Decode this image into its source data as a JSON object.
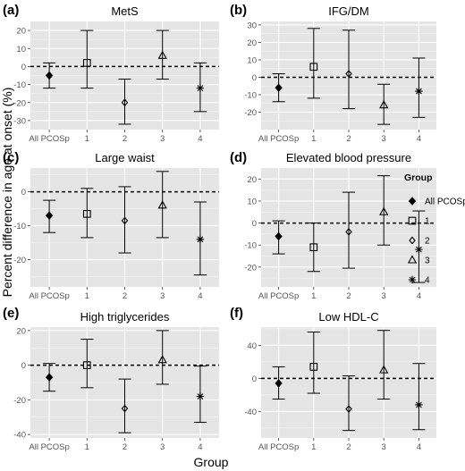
{
  "figure": {
    "ylabel": "Percent difference in age at onset (%)",
    "xlabel": "Group",
    "legend": {
      "title": "Group",
      "placement": "right",
      "entries": [
        {
          "label": "All PCOSp",
          "shape": "filled-diamond"
        },
        {
          "label": "1",
          "shape": "square"
        },
        {
          "label": "2",
          "shape": "diamond"
        },
        {
          "label": "3",
          "shape": "triangle"
        },
        {
          "label": "4",
          "shape": "asterisk"
        }
      ]
    },
    "colors": {
      "panel_bg": "#e5e5e5",
      "grid": "#ffffff",
      "marks": "#000000"
    }
  },
  "chart_data": [
    {
      "type": "scatter",
      "panel": "(a)",
      "title": "MetS",
      "categories": [
        "All PCOSp",
        "1",
        "2",
        "3",
        "4"
      ],
      "ylim": [
        -35,
        25
      ],
      "yticks": [
        -30,
        -20,
        -10,
        0,
        10,
        20
      ],
      "reference_line": 0,
      "grid": true,
      "points": [
        {
          "group": "All PCOSp",
          "estimate": -5,
          "lower": -12,
          "upper": 2
        },
        {
          "group": "1",
          "estimate": 2,
          "lower": -12,
          "upper": 20
        },
        {
          "group": "2",
          "estimate": -20,
          "lower": -32,
          "upper": -7
        },
        {
          "group": "3",
          "estimate": 6,
          "lower": -7,
          "upper": 20
        },
        {
          "group": "4",
          "estimate": -12,
          "lower": -25,
          "upper": 2
        }
      ]
    },
    {
      "type": "scatter",
      "panel": "(b)",
      "title": "IFG/DM",
      "categories": [
        "All PCOSp",
        "1",
        "2",
        "3",
        "4"
      ],
      "ylim": [
        -30,
        32
      ],
      "yticks": [
        -20,
        -10,
        0,
        10,
        20,
        30
      ],
      "reference_line": 0,
      "grid": true,
      "points": [
        {
          "group": "All PCOSp",
          "estimate": -6,
          "lower": -14,
          "upper": 2
        },
        {
          "group": "1",
          "estimate": 6,
          "lower": -12,
          "upper": 28
        },
        {
          "group": "2",
          "estimate": 2,
          "lower": -18,
          "upper": 27
        },
        {
          "group": "3",
          "estimate": -16,
          "lower": -27,
          "upper": -4
        },
        {
          "group": "4",
          "estimate": -8,
          "lower": -23,
          "upper": 11
        }
      ]
    },
    {
      "type": "scatter",
      "panel": "(c)",
      "title": "Large waist",
      "categories": [
        "All PCOSp",
        "1",
        "2",
        "3",
        "4"
      ],
      "ylim": [
        -28,
        7
      ],
      "yticks": [
        -20,
        -10,
        0
      ],
      "reference_line": 0,
      "grid": true,
      "points": [
        {
          "group": "All PCOSp",
          "estimate": -7,
          "lower": -12,
          "upper": -2.5
        },
        {
          "group": "1",
          "estimate": -6.5,
          "lower": -13.5,
          "upper": 1
        },
        {
          "group": "2",
          "estimate": -8.5,
          "lower": -18,
          "upper": 1.5
        },
        {
          "group": "3",
          "estimate": -4,
          "lower": -13.5,
          "upper": 6
        },
        {
          "group": "4",
          "estimate": -14,
          "lower": -24.5,
          "upper": -3
        }
      ]
    },
    {
      "type": "scatter",
      "panel": "(d)",
      "title": "Elevated blood pressure",
      "categories": [
        "All PCOSp",
        "1",
        "2",
        "3",
        "4"
      ],
      "ylim": [
        -29,
        25
      ],
      "yticks": [
        -20,
        -10,
        0,
        10,
        20
      ],
      "reference_line": 0,
      "grid": true,
      "points": [
        {
          "group": "All PCOSp",
          "estimate": -6,
          "lower": -14,
          "upper": 1
        },
        {
          "group": "1",
          "estimate": -11,
          "lower": -22,
          "upper": 0
        },
        {
          "group": "2",
          "estimate": -4,
          "lower": -20.5,
          "upper": 14
        },
        {
          "group": "3",
          "estimate": 5,
          "lower": -10,
          "upper": 21.5
        },
        {
          "group": "4",
          "estimate": -12,
          "lower": -27,
          "upper": 5.5
        }
      ]
    },
    {
      "type": "scatter",
      "panel": "(e)",
      "title": "High triglycerides",
      "categories": [
        "All PCOSp",
        "1",
        "2",
        "3",
        "4"
      ],
      "ylim": [
        -42,
        22
      ],
      "yticks": [
        -40,
        -20,
        0,
        20
      ],
      "reference_line": 0,
      "grid": true,
      "points": [
        {
          "group": "All PCOSp",
          "estimate": -7,
          "lower": -15,
          "upper": 1
        },
        {
          "group": "1",
          "estimate": 0,
          "lower": -13,
          "upper": 15
        },
        {
          "group": "2",
          "estimate": -25,
          "lower": -39,
          "upper": -8
        },
        {
          "group": "3",
          "estimate": 3,
          "lower": -11,
          "upper": 20
        },
        {
          "group": "4",
          "estimate": -18,
          "lower": -33,
          "upper": -0.5
        }
      ]
    },
    {
      "type": "scatter",
      "panel": "(f)",
      "title": "Low HDL-C",
      "categories": [
        "All PCOSp",
        "1",
        "2",
        "3",
        "4"
      ],
      "ylim": [
        -72,
        62
      ],
      "yticks": [
        -40,
        0,
        40
      ],
      "reference_line": 0,
      "grid": true,
      "points": [
        {
          "group": "All PCOSp",
          "estimate": -6,
          "lower": -25,
          "upper": 14
        },
        {
          "group": "1",
          "estimate": 14,
          "lower": -18,
          "upper": 56
        },
        {
          "group": "2",
          "estimate": -37,
          "lower": -63,
          "upper": 3
        },
        {
          "group": "3",
          "estimate": 10,
          "lower": -25,
          "upper": 58
        },
        {
          "group": "4",
          "estimate": -32,
          "lower": -62,
          "upper": 18
        }
      ]
    }
  ]
}
